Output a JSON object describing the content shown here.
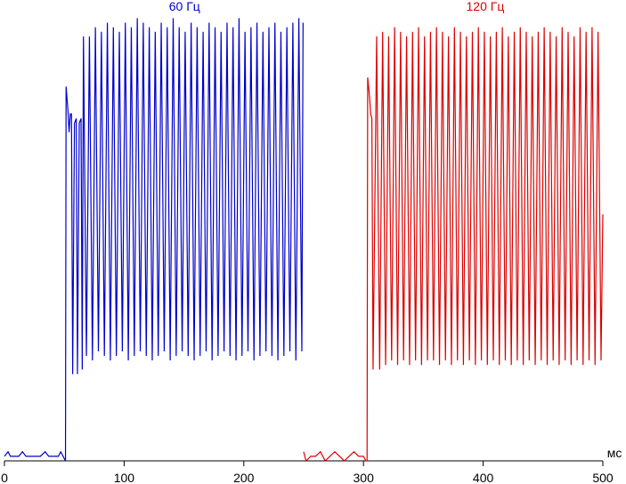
{
  "chart_data": {
    "type": "line",
    "x_label": "мс",
    "xlim": [
      0,
      500
    ],
    "xticks": [
      0,
      100,
      200,
      300,
      400,
      500
    ],
    "ylim": [
      0,
      100
    ],
    "series": [
      {
        "name": "60 Гц",
        "color": "#0000cc",
        "x": [
          0,
          3,
          5,
          8,
          12,
          15,
          18,
          22,
          25,
          30,
          34,
          37,
          40,
          45,
          47,
          49,
          51,
          51.5,
          53,
          54,
          55,
          56,
          57,
          58.5,
          60,
          61,
          62.5,
          64,
          65,
          66,
          68.5,
          71,
          73.5,
          76,
          78.5,
          81,
          83.5,
          86,
          88.5,
          91,
          93.5,
          96,
          98.5,
          101,
          103.5,
          106,
          108.5,
          111,
          113.5,
          116,
          118.5,
          121,
          123.5,
          126,
          128.5,
          131,
          133.5,
          136,
          138.5,
          141,
          143.5,
          146,
          148.5,
          151,
          153.5,
          156,
          158.5,
          161,
          163.5,
          166,
          168.5,
          171,
          173.5,
          176,
          178.5,
          181,
          183.5,
          186,
          188.5,
          191,
          193.5,
          196,
          198.5,
          201,
          203.5,
          206,
          208.5,
          211,
          213.5,
          216,
          218.5,
          221,
          223.5,
          226,
          228.5,
          231,
          233.5,
          236,
          238.5,
          241,
          243.5,
          246,
          248.5,
          249.5
        ],
        "values": [
          1,
          2,
          1,
          1,
          1,
          2,
          1,
          1,
          1,
          1,
          2,
          1,
          1,
          1,
          2,
          1,
          0,
          82,
          77,
          72,
          76,
          76,
          19,
          74,
          75,
          19,
          74,
          75,
          20,
          93,
          23,
          93,
          22,
          95,
          24,
          94,
          23,
          96,
          22,
          95,
          23,
          94,
          24,
          96,
          22,
          95,
          23,
          97,
          24,
          96,
          23,
          95,
          22,
          94,
          23,
          96,
          24,
          95,
          22,
          97,
          23,
          95,
          24,
          94,
          23,
          96,
          22,
          95,
          23,
          94,
          24,
          96,
          22,
          95,
          23,
          94,
          24,
          96,
          23,
          95,
          22,
          97,
          23,
          94,
          24,
          95,
          22,
          96,
          23,
          94,
          24,
          95,
          23,
          96,
          22,
          94,
          23,
          95,
          24,
          96,
          22,
          97,
          24,
          96
        ]
      },
      {
        "name": "120 Гц",
        "color": "#dd0000",
        "x": [
          250,
          252,
          256,
          260,
          264,
          268,
          272,
          276,
          280,
          284,
          288,
          292,
          296,
          300,
          302,
          303,
          303.5,
          305,
          306,
          307,
          308,
          311,
          313.5,
          316,
          318.5,
          321,
          323.5,
          326,
          328.5,
          331,
          333.5,
          336,
          338.5,
          341,
          343.5,
          346,
          348.5,
          351,
          353.5,
          356,
          358.5,
          361,
          363.5,
          366,
          368.5,
          371,
          373.5,
          376,
          378.5,
          381,
          383.5,
          386,
          388.5,
          391,
          393.5,
          396,
          398.5,
          401,
          403.5,
          406,
          408.5,
          411,
          413.5,
          416,
          418.5,
          421,
          423.5,
          426,
          428.5,
          431,
          433.5,
          436,
          438.5,
          441,
          443.5,
          446,
          448.5,
          451,
          453.5,
          456,
          458.5,
          461,
          463.5,
          466,
          468.5,
          471,
          473.5,
          476,
          478.5,
          481,
          483.5,
          486,
          488.5,
          491,
          493.5,
          496,
          498.5,
          500
        ],
        "values": [
          2,
          0,
          1,
          1,
          2,
          0,
          1,
          2,
          1,
          0,
          1,
          2,
          1,
          1,
          0,
          0,
          84,
          80,
          76,
          75,
          20,
          93,
          20,
          94,
          21,
          93,
          22,
          95,
          21,
          94,
          22,
          93,
          21,
          94,
          22,
          95,
          21,
          93,
          22,
          94,
          22,
          95,
          21,
          94,
          22,
          93,
          21,
          95,
          22,
          94,
          21,
          93,
          22,
          94,
          21,
          95,
          22,
          94,
          21,
          93,
          22,
          94,
          21,
          95,
          22,
          93,
          21,
          94,
          22,
          95,
          21,
          94,
          22,
          93,
          21,
          94,
          22,
          95,
          21,
          94,
          22,
          93,
          21,
          95,
          22,
          94,
          21,
          93,
          22,
          95,
          21,
          94,
          22,
          95,
          21,
          94,
          22,
          54
        ]
      }
    ]
  }
}
